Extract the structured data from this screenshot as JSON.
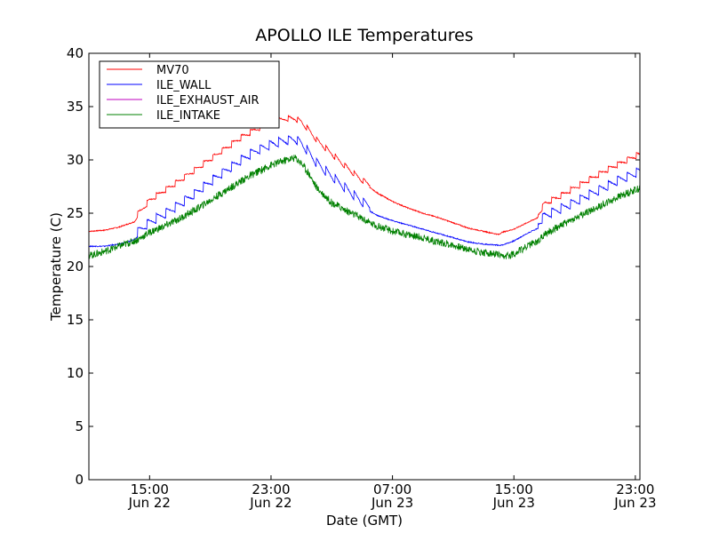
{
  "chart_data": {
    "type": "line",
    "title": "APOLLO ILE Temperatures",
    "xlabel": "Date (GMT)",
    "ylabel": "Temperature (C)",
    "ylim": [
      0,
      40
    ],
    "yticks": [
      0,
      5,
      10,
      15,
      20,
      25,
      30,
      35,
      40
    ],
    "x_unit": "hours since Jun 22 00:00 GMT",
    "xlim": [
      11.0,
      47.3
    ],
    "xticks": [
      {
        "value": 15,
        "time": "15:00",
        "date": "Jun 22"
      },
      {
        "value": 23,
        "time": "23:00",
        "date": "Jun 22"
      },
      {
        "value": 31,
        "time": "07:00",
        "date": "Jun 23"
      },
      {
        "value": 39,
        "time": "15:00",
        "date": "Jun 23"
      },
      {
        "value": 47,
        "time": "23:00",
        "date": "Jun 23"
      }
    ],
    "grid": false,
    "legend_position": "top-left",
    "series": [
      {
        "name": "MV70",
        "color": "#ff0000",
        "x": [
          11.0,
          12.0,
          13.0,
          14.0,
          14.2,
          15.0,
          16.0,
          17.0,
          18.0,
          19.0,
          20.0,
          21.0,
          22.0,
          23.0,
          24.0,
          24.6,
          25.0,
          25.5,
          26.0,
          27.0,
          28.0,
          29.0,
          29.5,
          30.0,
          31.0,
          32.0,
          33.0,
          34.0,
          35.0,
          36.0,
          37.0,
          38.0,
          38.2,
          39.0,
          40.0,
          40.6,
          41.0,
          42.0,
          43.0,
          44.0,
          45.0,
          46.0,
          47.0,
          47.3
        ],
        "y": [
          23.3,
          23.4,
          23.7,
          24.2,
          24.6,
          25.9,
          26.9,
          27.8,
          28.8,
          29.8,
          30.8,
          31.8,
          32.6,
          33.2,
          33.6,
          33.6,
          33.3,
          32.5,
          31.6,
          30.3,
          29.0,
          27.8,
          27.4,
          26.9,
          26.1,
          25.5,
          25.0,
          24.6,
          24.1,
          23.6,
          23.3,
          23.0,
          23.2,
          23.5,
          24.2,
          24.6,
          25.6,
          26.3,
          27.1,
          27.9,
          28.7,
          29.4,
          30.1,
          30.2
        ]
      },
      {
        "name": "ILE_WALL",
        "color": "#0000ff",
        "x": [
          11.0,
          12.0,
          13.0,
          14.0,
          14.2,
          15.0,
          16.0,
          17.0,
          18.0,
          19.0,
          20.0,
          21.0,
          22.0,
          23.0,
          24.0,
          24.6,
          25.0,
          25.5,
          26.0,
          27.0,
          28.0,
          29.0,
          29.5,
          30.0,
          31.0,
          32.0,
          33.0,
          34.0,
          35.0,
          36.0,
          37.0,
          38.0,
          38.2,
          39.0,
          40.0,
          40.6,
          41.0,
          42.0,
          43.0,
          44.0,
          45.0,
          46.0,
          47.0,
          47.3
        ],
        "y": [
          21.9,
          21.9,
          22.1,
          22.5,
          22.8,
          23.7,
          24.5,
          25.4,
          26.4,
          27.5,
          28.5,
          29.5,
          30.4,
          31.0,
          31.4,
          31.5,
          31.1,
          30.2,
          29.3,
          28.0,
          26.8,
          25.6,
          25.2,
          24.8,
          24.3,
          23.9,
          23.5,
          23.1,
          22.7,
          22.3,
          22.1,
          22.0,
          22.0,
          22.4,
          23.2,
          23.6,
          24.3,
          24.9,
          25.6,
          26.3,
          27.0,
          27.7,
          28.3,
          28.5
        ]
      },
      {
        "name": "ILE_EXHAUST_AIR",
        "color": "#bf00bf",
        "x": [
          11.0,
          47.3
        ],
        "y": [
          21.0,
          27.4
        ]
      },
      {
        "name": "ILE_INTAKE",
        "color": "#008000",
        "x": [
          11.0,
          12.0,
          13.0,
          14.0,
          14.2,
          15.0,
          16.0,
          17.0,
          18.0,
          19.0,
          20.0,
          21.0,
          22.0,
          23.0,
          24.0,
          24.6,
          25.0,
          25.5,
          26.0,
          27.0,
          28.0,
          29.0,
          29.5,
          30.0,
          31.0,
          32.0,
          33.0,
          34.0,
          35.0,
          36.0,
          37.0,
          38.0,
          38.2,
          39.0,
          40.0,
          40.6,
          41.0,
          42.0,
          43.0,
          44.0,
          45.0,
          46.0,
          47.0,
          47.3
        ],
        "y": [
          21.0,
          21.4,
          21.9,
          22.4,
          22.5,
          23.2,
          23.8,
          24.5,
          25.3,
          26.2,
          27.1,
          28.0,
          28.8,
          29.5,
          30.0,
          30.2,
          29.7,
          28.7,
          27.4,
          26.0,
          25.2,
          24.5,
          24.1,
          23.8,
          23.3,
          23.0,
          22.7,
          22.3,
          22.0,
          21.6,
          21.3,
          21.1,
          20.8,
          21.2,
          22.0,
          22.4,
          23.0,
          23.8,
          24.5,
          25.2,
          25.9,
          26.6,
          27.2,
          27.3
        ]
      }
    ]
  }
}
